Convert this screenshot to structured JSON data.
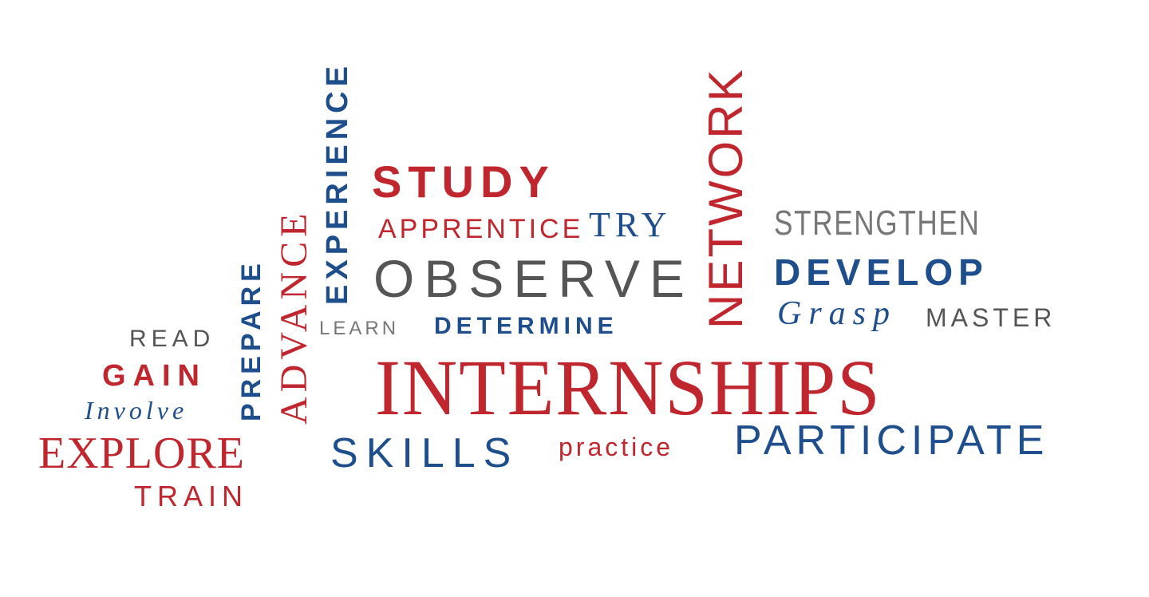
{
  "colors": {
    "red": "#c0262d",
    "blue": "#1f4e8c",
    "gray": "#555555",
    "lightgray": "#777777"
  },
  "words": {
    "experience": "EXPERIENCE",
    "study": "STUDY",
    "advance": "ADVANCE",
    "prepare": "PREPARE",
    "network": "NETWORK",
    "apprentice": "APPRENTICE",
    "try": "TRY",
    "strengthen": "STRENGTHEN",
    "observe": "OBSERVE",
    "develop": "DEVELOP",
    "grasp": "Grasp",
    "master": "MASTER",
    "read": "READ",
    "learn": "LEARN",
    "determine": "DETERMINE",
    "gain": "GAIN",
    "internships": "INTERNSHIPS",
    "involve": "Involve",
    "explore": "EXPLORE",
    "skills": "SKILLS",
    "practice": "practice",
    "participate": "PARTICIPATE",
    "train": "TRAIN"
  }
}
